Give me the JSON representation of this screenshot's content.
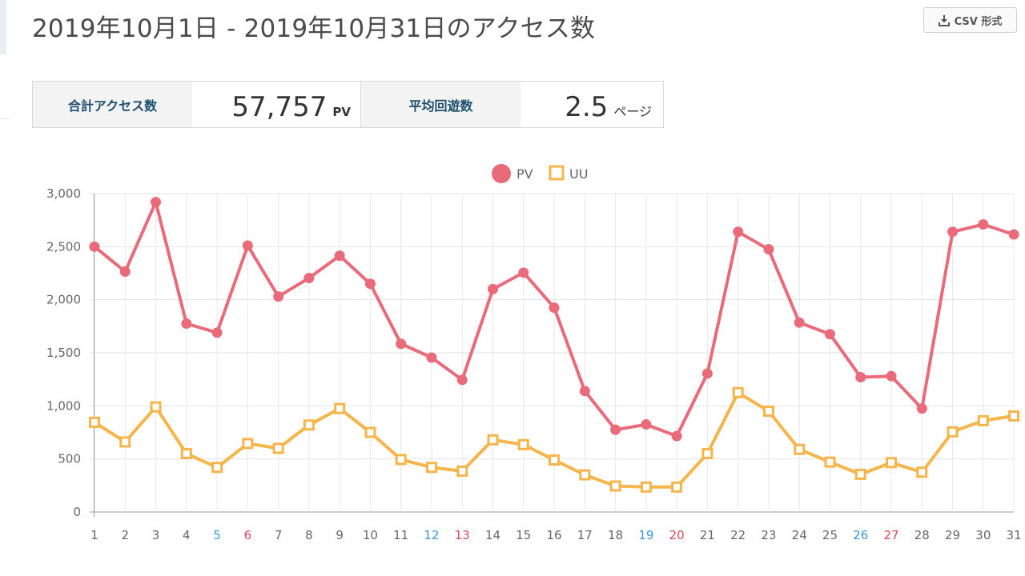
{
  "header": {
    "title": "2019年10月1日 - 2019年10月31日のアクセス数",
    "csv_label": "CSV 形式",
    "csv_icon": "download-icon"
  },
  "summary": {
    "total_label": "合計アクセス数",
    "total_value": "57,757",
    "total_unit": "PV",
    "avg_label": "平均回遊数",
    "avg_value": "2.5",
    "avg_unit": "ページ"
  },
  "chart_data": {
    "type": "line",
    "title": "",
    "xlabel": "",
    "ylabel": "",
    "categories": [
      "1",
      "2",
      "3",
      "4",
      "5",
      "6",
      "7",
      "8",
      "9",
      "10",
      "11",
      "12",
      "13",
      "14",
      "15",
      "16",
      "17",
      "18",
      "19",
      "20",
      "21",
      "22",
      "23",
      "24",
      "25",
      "26",
      "27",
      "28",
      "29",
      "30",
      "31"
    ],
    "ylim": [
      0,
      3000
    ],
    "yticks": [
      0,
      500,
      1000,
      1500,
      2000,
      2500,
      3000
    ],
    "ytick_labels": [
      "0",
      "500",
      "1,000",
      "1,500",
      "2,000",
      "2,500",
      "3,000"
    ],
    "grid": true,
    "legend_position": "top-center",
    "saturdays": [
      "5",
      "12",
      "19",
      "26"
    ],
    "sundays": [
      "6",
      "13",
      "20",
      "27"
    ],
    "colors": {
      "pv": "#e96b7a",
      "uu": "#f5b54a",
      "saturday": "#3a96dd",
      "sunday": "#e0485a"
    },
    "series": [
      {
        "name": "PV",
        "marker": "circle",
        "values": [
          2500,
          2265,
          2920,
          1775,
          1690,
          2510,
          2030,
          2205,
          2415,
          2150,
          1585,
          1455,
          1245,
          2100,
          2255,
          1925,
          1140,
          775,
          825,
          715,
          1305,
          2640,
          2475,
          1785,
          1675,
          1270,
          1280,
          975,
          2640,
          2710,
          2615
        ]
      },
      {
        "name": "UU",
        "marker": "square",
        "values": [
          845,
          660,
          990,
          550,
          420,
          645,
          600,
          820,
          975,
          750,
          495,
          420,
          385,
          680,
          635,
          490,
          350,
          245,
          235,
          235,
          550,
          1125,
          950,
          590,
          470,
          355,
          465,
          375,
          755,
          860,
          905
        ]
      }
    ]
  }
}
